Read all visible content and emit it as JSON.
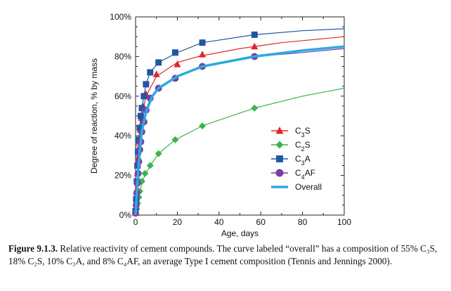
{
  "chart_data": {
    "type": "line",
    "title": "",
    "xlabel": "Age, days",
    "ylabel": "Degree of reaction, % by mass",
    "xlim": [
      0,
      100
    ],
    "ylim": [
      0,
      100
    ],
    "x_ticks": [
      0,
      20,
      40,
      60,
      80,
      100
    ],
    "y_ticks": [
      0,
      20,
      40,
      60,
      80,
      100
    ],
    "y_tick_labels": [
      "0%",
      "20%",
      "40%",
      "60%",
      "80%",
      "100%"
    ],
    "grid": false,
    "legend_position": "right",
    "series": [
      {
        "name": "C3S",
        "marker": "triangle",
        "color": "#e3242b",
        "points": [
          [
            0,
            1
          ],
          [
            0.3,
            6
          ],
          [
            0.6,
            13
          ],
          [
            0.9,
            21
          ],
          [
            1.3,
            29
          ],
          [
            1.7,
            37
          ],
          [
            2.3,
            43
          ],
          [
            2.8,
            49
          ],
          [
            3.5,
            55
          ],
          [
            5,
            61
          ],
          [
            10,
            71
          ],
          [
            20,
            76
          ],
          [
            32,
            81
          ],
          [
            57,
            85
          ]
        ],
        "curve": [
          [
            0,
            0
          ],
          [
            0.5,
            10
          ],
          [
            1,
            20
          ],
          [
            2,
            38
          ],
          [
            3,
            50
          ],
          [
            5,
            60
          ],
          [
            10,
            70
          ],
          [
            20,
            77
          ],
          [
            30,
            80
          ],
          [
            50,
            84
          ],
          [
            70,
            87
          ],
          [
            100,
            90
          ]
        ]
      },
      {
        "name": "C2S",
        "marker": "diamond",
        "color": "#3cb44b",
        "points": [
          [
            0,
            1
          ],
          [
            0.5,
            3
          ],
          [
            1,
            6
          ],
          [
            1.5,
            9
          ],
          [
            2,
            12
          ],
          [
            3,
            17
          ],
          [
            4.5,
            21
          ],
          [
            7,
            25
          ],
          [
            11,
            31
          ],
          [
            19,
            38
          ],
          [
            32,
            45
          ],
          [
            57,
            54
          ]
        ],
        "curve": [
          [
            0,
            0
          ],
          [
            1,
            6
          ],
          [
            2,
            12
          ],
          [
            4,
            19
          ],
          [
            7,
            25
          ],
          [
            11,
            31
          ],
          [
            19,
            38
          ],
          [
            32,
            45
          ],
          [
            57,
            54
          ],
          [
            80,
            60
          ],
          [
            100,
            64
          ]
        ]
      },
      {
        "name": "C3A",
        "marker": "square",
        "color": "#1f57a4",
        "points": [
          [
            0,
            2
          ],
          [
            0.3,
            8
          ],
          [
            0.6,
            17
          ],
          [
            0.9,
            25
          ],
          [
            1.2,
            32
          ],
          [
            1.5,
            38
          ],
          [
            2,
            44
          ],
          [
            2.5,
            50
          ],
          [
            3,
            54
          ],
          [
            4,
            60
          ],
          [
            5,
            66
          ],
          [
            7,
            72
          ],
          [
            11,
            77
          ],
          [
            19,
            82
          ],
          [
            32,
            87
          ],
          [
            57,
            91
          ]
        ],
        "curve": [
          [
            0,
            0
          ],
          [
            1,
            26
          ],
          [
            2,
            45
          ],
          [
            3,
            54
          ],
          [
            5,
            66
          ],
          [
            7,
            72
          ],
          [
            11,
            77
          ],
          [
            20,
            82
          ],
          [
            32,
            87
          ],
          [
            57,
            91
          ],
          [
            80,
            93
          ],
          [
            100,
            94
          ]
        ]
      },
      {
        "name": "C4AF",
        "marker": "circle",
        "color": "#7a3fa5",
        "points": [
          [
            0,
            1
          ],
          [
            0.3,
            5
          ],
          [
            0.6,
            11
          ],
          [
            0.9,
            16
          ],
          [
            1.2,
            21
          ],
          [
            1.5,
            27
          ],
          [
            2,
            33
          ],
          [
            2.5,
            37
          ],
          [
            3,
            42
          ],
          [
            4,
            47
          ],
          [
            5,
            53
          ],
          [
            7,
            59
          ],
          [
            11,
            64
          ],
          [
            19,
            69
          ],
          [
            32,
            75
          ],
          [
            57,
            80
          ]
        ],
        "curve": [
          [
            0,
            0
          ],
          [
            1,
            17
          ],
          [
            2,
            33
          ],
          [
            3,
            42
          ],
          [
            5,
            53
          ],
          [
            7,
            59
          ],
          [
            11,
            64
          ],
          [
            20,
            70
          ],
          [
            32,
            75
          ],
          [
            57,
            80
          ],
          [
            80,
            82
          ],
          [
            100,
            84
          ]
        ]
      },
      {
        "name": "Overall",
        "marker": "none",
        "color": "#2ea8e0",
        "points": [],
        "curve": [
          [
            0,
            0
          ],
          [
            0.5,
            10
          ],
          [
            1,
            18
          ],
          [
            2,
            32
          ],
          [
            3,
            42
          ],
          [
            5,
            52
          ],
          [
            8,
            60
          ],
          [
            11,
            64
          ],
          [
            20,
            70
          ],
          [
            32,
            75
          ],
          [
            57,
            80
          ],
          [
            80,
            83
          ],
          [
            100,
            85
          ]
        ]
      }
    ]
  },
  "caption": {
    "label": "Figure 9.1.3.",
    "text": "Relative reactivity of cement compounds. The curve labeled “overall” has a composition of 55% C₃S, 18% C₂S, 10% C₃A, and 8% C₄AF, an average Type I cement composition (Tennis and Jennings 2000)."
  }
}
